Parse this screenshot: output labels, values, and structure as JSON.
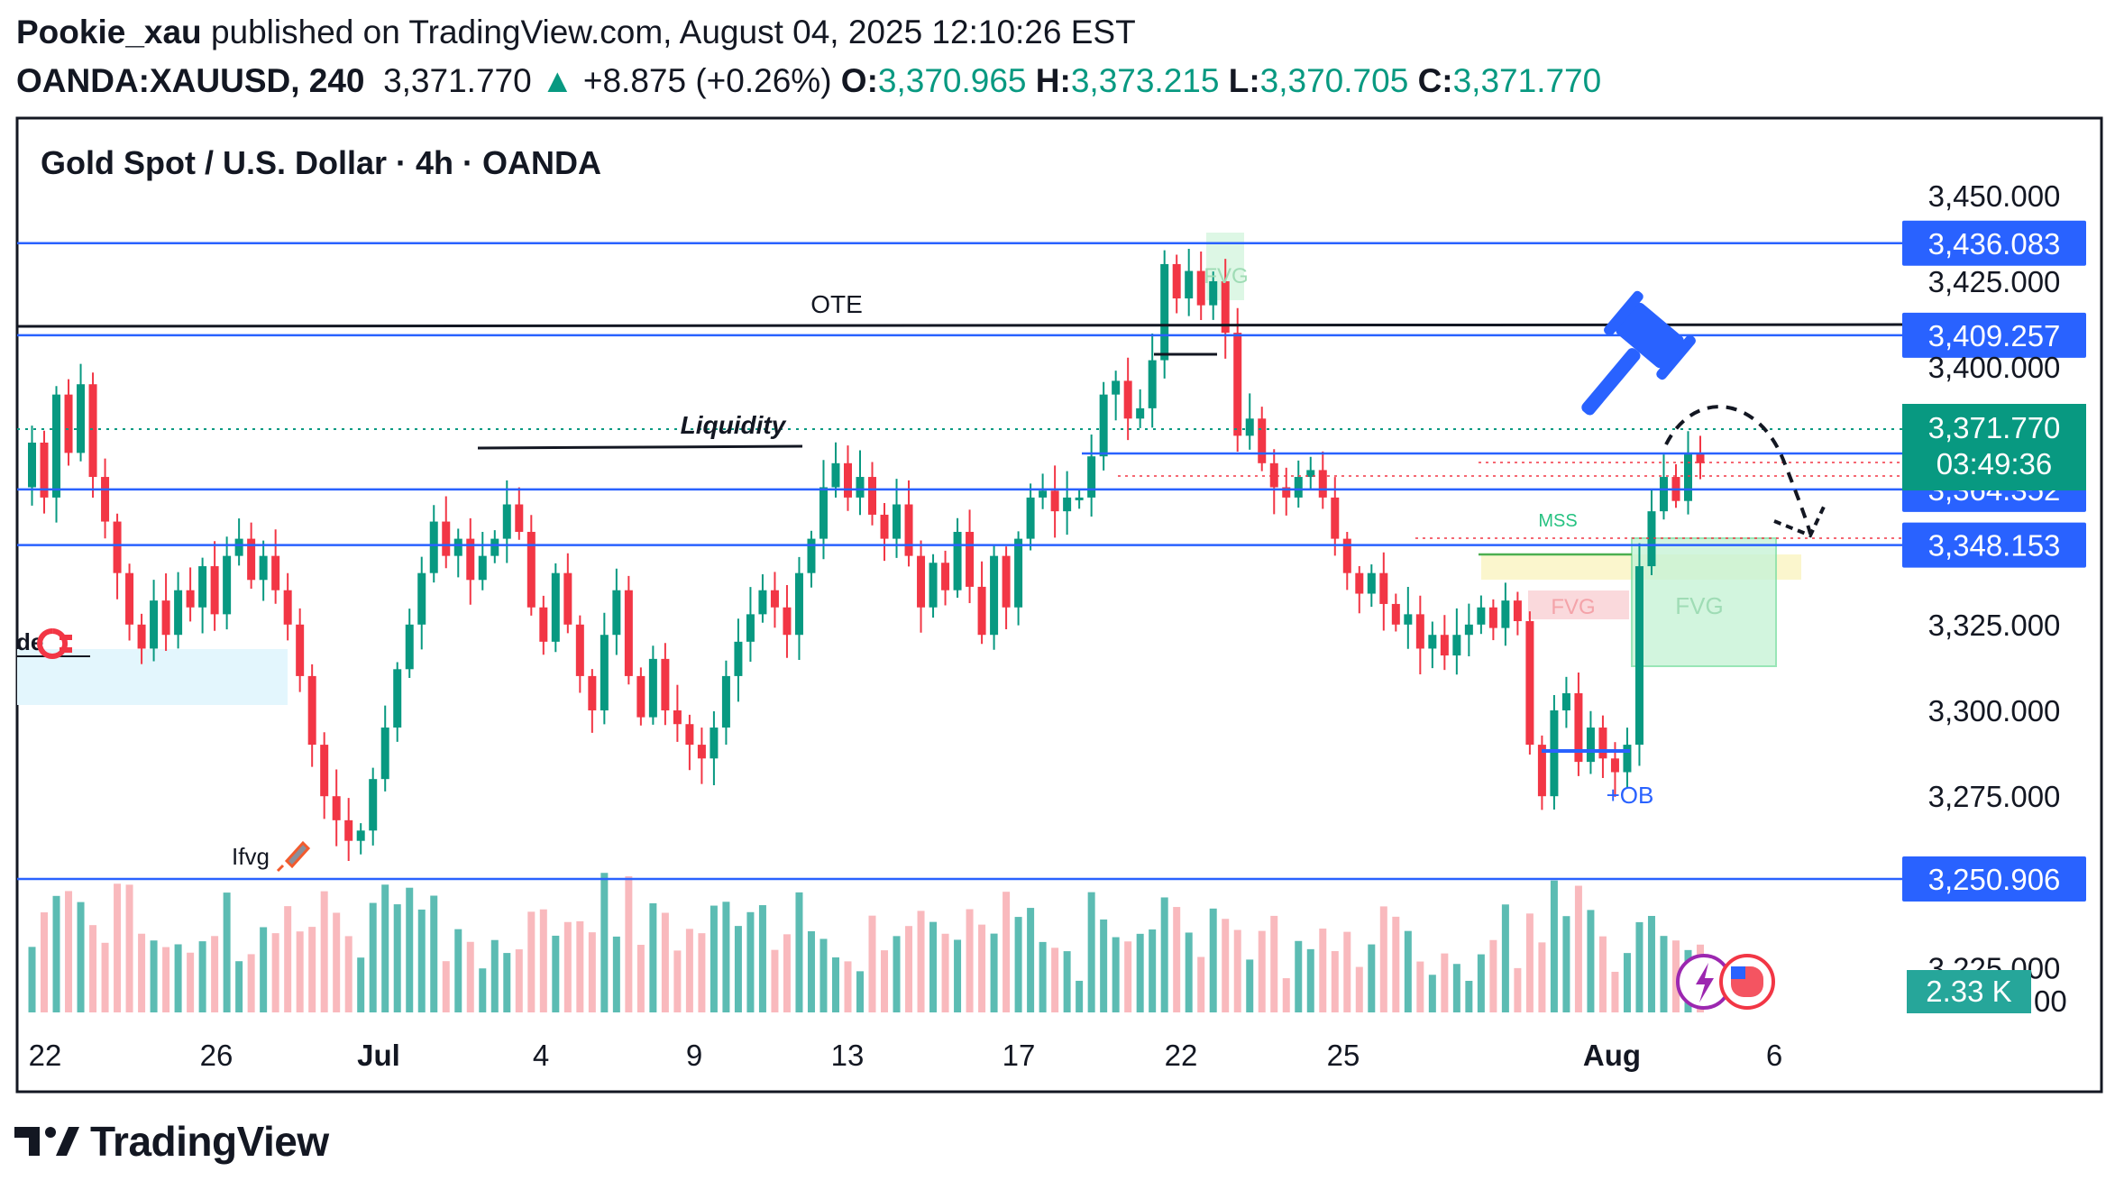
{
  "header": {
    "author": "Pookie_xau",
    "published_text": "published on TradingView.com, August 04, 2025 12:10:26 EST",
    "symbol": "OANDA:XAUUSD, 240",
    "last_price": "3,371.770",
    "change_arrow": "▲",
    "change": "+8.875 (+0.26%)",
    "open_label": "O:",
    "open": "3,370.965",
    "high_label": "H:",
    "high": "3,373.215",
    "low_label": "L:",
    "low": "3,370.705",
    "close_label": "C:",
    "close": "3,371.770"
  },
  "colors": {
    "up": "#089981",
    "down": "#f23645",
    "level_line": "#2962ff",
    "label_bg": "#2962ff",
    "price_label_bg": "#089981",
    "fvg_green": "#b9f0cf",
    "fvg_red": "#f8c9cd",
    "zone_blue": "#e3f6fd"
  },
  "footer": {
    "logo_text": "TradingView",
    "logo_icon": "tradingview-logo-icon"
  },
  "chart_data": {
    "type": "candlestick",
    "title": "Gold Spot / U.S. Dollar · 4h · OANDA",
    "y_axis": {
      "range": [
        3201,
        3472
      ],
      "ticks": [
        3225,
        3250,
        3275,
        3300,
        3325,
        3350,
        3375,
        3400,
        3425,
        3450
      ],
      "visible_tick_labels": [
        "3,450.000",
        "3,425.000",
        "3,400.000",
        "3,325.000",
        "3,300.000",
        "3,275.000",
        "3,225.000",
        "3,200.000"
      ]
    },
    "x_axis": {
      "tick_labels": [
        "22",
        "26",
        "Jul",
        "4",
        "9",
        "13",
        "17",
        "22",
        "25",
        "Aug",
        "6"
      ],
      "bold_labels": [
        "Jul",
        "Aug"
      ]
    },
    "horizontal_levels": [
      {
        "price": 3436.083,
        "label": "3,436.083"
      },
      {
        "price": 3409.257,
        "label": "3,409.257"
      },
      {
        "price": 3364.352,
        "label": "3,364.352"
      },
      {
        "price": 3348.153,
        "label": "3,348.153"
      },
      {
        "price": 3250.906,
        "label": "3,250.906"
      }
    ],
    "current_price": {
      "price": 3371.77,
      "label": "3,371.770",
      "countdown": "03:49:36"
    },
    "volume_label": "2.33 K",
    "annotations": [
      "OTE",
      "Liquidity",
      "MSS",
      "FVG",
      "FVG",
      "FVG",
      "+OB",
      "Ifvg",
      "de"
    ],
    "candle_anchors": [
      3365,
      3378,
      3362,
      3392,
      3375,
      3395,
      3368,
      3355,
      3340,
      3325,
      3318,
      3332,
      3322,
      3335,
      3330,
      3342,
      3328,
      3345,
      3350,
      3338,
      3345,
      3335,
      3325,
      3310,
      3290,
      3275,
      3268,
      3262,
      3265,
      3280,
      3295,
      3312,
      3325,
      3340,
      3355,
      3345,
      3350,
      3338,
      3345,
      3350,
      3360,
      3352,
      3330,
      3320,
      3340,
      3325,
      3310,
      3300,
      3322,
      3335,
      3310,
      3298,
      3315,
      3300,
      3296,
      3290,
      3286,
      3295,
      3310,
      3320,
      3328,
      3335,
      3330,
      3322,
      3340,
      3350,
      3365,
      3372,
      3362,
      3368,
      3357,
      3350,
      3360,
      3345,
      3330,
      3343,
      3335,
      3352,
      3336,
      3322,
      3345,
      3330,
      3350,
      3362,
      3364,
      3358,
      3362,
      3362,
      3374,
      3392,
      3396,
      3385,
      3388,
      3402,
      3430,
      3420,
      3428,
      3418,
      3425,
      3410,
      3380,
      3385,
      3372,
      3365,
      3362,
      3368,
      3370,
      3362,
      3350,
      3340,
      3334,
      3340,
      3331,
      3325,
      3328,
      3318,
      3322,
      3316,
      3322,
      3325,
      3330,
      3324,
      3332,
      3326,
      3290,
      3275,
      3300,
      3305,
      3285,
      3295,
      3286,
      3282,
      3290,
      3342,
      3358,
      3368,
      3361,
      3375,
      3372
    ]
  }
}
